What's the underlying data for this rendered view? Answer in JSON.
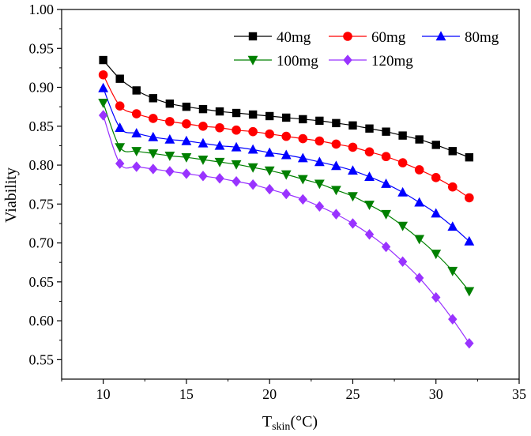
{
  "chart_data": {
    "type": "line",
    "xlabel": {
      "main": "T",
      "sub": "skin",
      "unit": "(°C)"
    },
    "ylabel": "Viability",
    "xlim": [
      7.5,
      35
    ],
    "ylim": [
      0.525,
      1.0
    ],
    "xticks": [
      10,
      15,
      20,
      25,
      30,
      35
    ],
    "xtick_labels": [
      "10",
      "15",
      "20",
      "25",
      "30",
      "35"
    ],
    "yticks": [
      0.55,
      0.6,
      0.65,
      0.7,
      0.75,
      0.8,
      0.85,
      0.9,
      0.95,
      1.0
    ],
    "ytick_labels": [
      "0.55",
      "0.60",
      "0.65",
      "0.70",
      "0.75",
      "0.80",
      "0.85",
      "0.90",
      "0.95",
      "1.00"
    ],
    "grid": false,
    "legend_position": "top-right",
    "x": [
      10,
      11,
      12,
      13,
      14,
      15,
      16,
      17,
      18,
      19,
      20,
      21,
      22,
      23,
      24,
      25,
      26,
      27,
      28,
      29,
      30,
      31,
      32
    ],
    "series": [
      {
        "name": "40mg",
        "color": "#000000",
        "marker": "square",
        "values": [
          0.935,
          0.911,
          0.896,
          0.886,
          0.879,
          0.875,
          0.872,
          0.869,
          0.867,
          0.865,
          0.863,
          0.861,
          0.859,
          0.857,
          0.854,
          0.851,
          0.847,
          0.843,
          0.838,
          0.833,
          0.826,
          0.818,
          0.81
        ]
      },
      {
        "name": "60mg",
        "color": "#ff0000",
        "marker": "circle",
        "values": [
          0.916,
          0.876,
          0.866,
          0.86,
          0.856,
          0.853,
          0.85,
          0.848,
          0.845,
          0.843,
          0.84,
          0.837,
          0.834,
          0.831,
          0.827,
          0.823,
          0.817,
          0.811,
          0.803,
          0.794,
          0.784,
          0.772,
          0.758
        ]
      },
      {
        "name": "80mg",
        "color": "#0000ff",
        "marker": "triangle-up",
        "values": [
          0.899,
          0.848,
          0.841,
          0.836,
          0.833,
          0.831,
          0.828,
          0.825,
          0.823,
          0.82,
          0.816,
          0.813,
          0.809,
          0.804,
          0.799,
          0.793,
          0.785,
          0.776,
          0.765,
          0.752,
          0.738,
          0.721,
          0.702
        ]
      },
      {
        "name": "100mg",
        "color": "#008000",
        "marker": "triangle-down",
        "values": [
          0.88,
          0.823,
          0.818,
          0.815,
          0.812,
          0.81,
          0.807,
          0.804,
          0.801,
          0.797,
          0.793,
          0.788,
          0.782,
          0.776,
          0.768,
          0.76,
          0.749,
          0.737,
          0.722,
          0.705,
          0.686,
          0.664,
          0.638
        ]
      },
      {
        "name": "120mg",
        "color": "#9933ff",
        "marker": "diamond",
        "values": [
          0.864,
          0.802,
          0.798,
          0.795,
          0.792,
          0.789,
          0.786,
          0.783,
          0.779,
          0.775,
          0.769,
          0.763,
          0.756,
          0.747,
          0.737,
          0.725,
          0.711,
          0.695,
          0.676,
          0.655,
          0.63,
          0.602,
          0.571
        ]
      }
    ]
  }
}
